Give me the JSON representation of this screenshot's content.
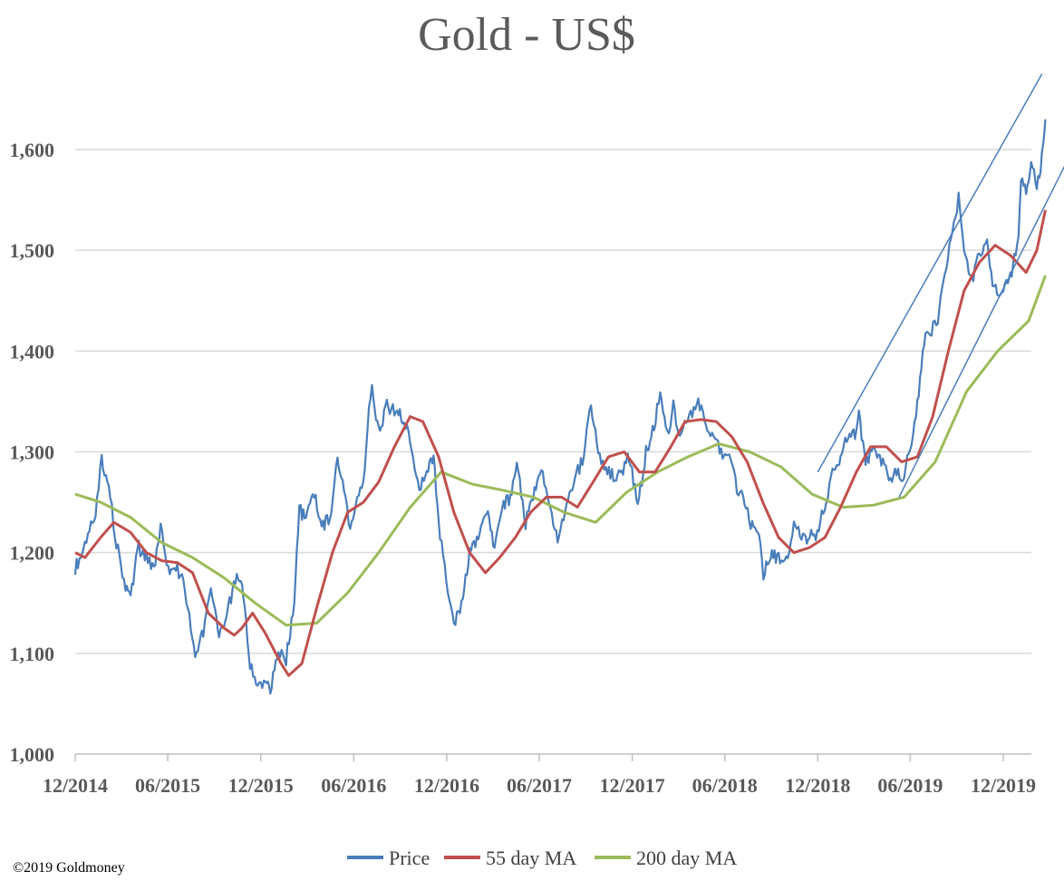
{
  "chart_data": {
    "type": "line",
    "title": "Gold - US$",
    "xlabel": "",
    "ylabel": "",
    "ylim": [
      1000,
      1650
    ],
    "yticks": [
      1000,
      1100,
      1200,
      1300,
      1400,
      1500,
      1600
    ],
    "ytick_labels": [
      "1,000",
      "1,100",
      "1,200",
      "1,300",
      "1,400",
      "1,500",
      "1,600"
    ],
    "xlim": [
      "2014-12-01",
      "2020-01-15"
    ],
    "xticks": [
      "2014-12-01",
      "2015-06-01",
      "2015-12-01",
      "2016-06-01",
      "2016-12-01",
      "2017-06-01",
      "2017-12-01",
      "2018-06-01",
      "2018-12-01",
      "2019-06-01",
      "2019-12-01"
    ],
    "xtick_labels": [
      "12/2014",
      "06/2015",
      "12/2015",
      "06/2016",
      "12/2016",
      "06/2017",
      "12/2017",
      "06/2018",
      "12/2018",
      "06/2019",
      "12/2019"
    ],
    "grid": "horizontal",
    "legend": "bottom-center",
    "series": [
      {
        "name": "Price",
        "color": "#4a7ebb",
        "points": [
          [
            "2014-12-01",
            1185
          ],
          [
            "2014-12-20",
            1205
          ],
          [
            "2015-01-10",
            1240
          ],
          [
            "2015-01-22",
            1295
          ],
          [
            "2015-02-05",
            1265
          ],
          [
            "2015-02-20",
            1210
          ],
          [
            "2015-03-10",
            1165
          ],
          [
            "2015-03-20",
            1160
          ],
          [
            "2015-04-05",
            1205
          ],
          [
            "2015-04-20",
            1195
          ],
          [
            "2015-05-05",
            1180
          ],
          [
            "2015-05-18",
            1225
          ],
          [
            "2015-06-05",
            1175
          ],
          [
            "2015-06-20",
            1185
          ],
          [
            "2015-07-05",
            1165
          ],
          [
            "2015-07-25",
            1095
          ],
          [
            "2015-08-10",
            1120
          ],
          [
            "2015-08-25",
            1160
          ],
          [
            "2015-09-10",
            1115
          ],
          [
            "2015-09-25",
            1140
          ],
          [
            "2015-10-15",
            1175
          ],
          [
            "2015-10-28",
            1160
          ],
          [
            "2015-11-10",
            1090
          ],
          [
            "2015-11-25",
            1065
          ],
          [
            "2015-12-10",
            1075
          ],
          [
            "2015-12-20",
            1065
          ],
          [
            "2016-01-05",
            1100
          ],
          [
            "2016-01-20",
            1095
          ],
          [
            "2016-02-05",
            1150
          ],
          [
            "2016-02-15",
            1245
          ],
          [
            "2016-02-28",
            1230
          ],
          [
            "2016-03-15",
            1260
          ],
          [
            "2016-03-30",
            1225
          ],
          [
            "2016-04-15",
            1235
          ],
          [
            "2016-04-30",
            1290
          ],
          [
            "2016-05-10",
            1275
          ],
          [
            "2016-05-25",
            1220
          ],
          [
            "2016-06-05",
            1245
          ],
          [
            "2016-06-20",
            1270
          ],
          [
            "2016-06-28",
            1325
          ],
          [
            "2016-07-07",
            1365
          ],
          [
            "2016-07-20",
            1320
          ],
          [
            "2016-08-05",
            1345
          ],
          [
            "2016-08-20",
            1340
          ],
          [
            "2016-09-05",
            1335
          ],
          [
            "2016-09-20",
            1315
          ],
          [
            "2016-10-05",
            1265
          ],
          [
            "2016-10-20",
            1270
          ],
          [
            "2016-11-05",
            1300
          ],
          [
            "2016-11-15",
            1230
          ],
          [
            "2016-11-30",
            1175
          ],
          [
            "2016-12-15",
            1130
          ],
          [
            "2016-12-30",
            1150
          ],
          [
            "2017-01-15",
            1200
          ],
          [
            "2017-02-01",
            1215
          ],
          [
            "2017-02-20",
            1240
          ],
          [
            "2017-03-05",
            1205
          ],
          [
            "2017-03-20",
            1245
          ],
          [
            "2017-04-05",
            1255
          ],
          [
            "2017-04-18",
            1290
          ],
          [
            "2017-05-05",
            1230
          ],
          [
            "2017-05-20",
            1255
          ],
          [
            "2017-06-05",
            1285
          ],
          [
            "2017-06-20",
            1245
          ],
          [
            "2017-07-10",
            1210
          ],
          [
            "2017-07-25",
            1255
          ],
          [
            "2017-08-10",
            1275
          ],
          [
            "2017-08-25",
            1290
          ],
          [
            "2017-09-08",
            1348
          ],
          [
            "2017-09-25",
            1300
          ],
          [
            "2017-10-10",
            1285
          ],
          [
            "2017-10-25",
            1275
          ],
          [
            "2017-11-10",
            1280
          ],
          [
            "2017-11-25",
            1295
          ],
          [
            "2017-12-12",
            1245
          ],
          [
            "2017-12-28",
            1300
          ],
          [
            "2018-01-10",
            1320
          ],
          [
            "2018-01-25",
            1355
          ],
          [
            "2018-02-08",
            1315
          ],
          [
            "2018-02-20",
            1345
          ],
          [
            "2018-03-05",
            1315
          ],
          [
            "2018-03-20",
            1330
          ],
          [
            "2018-04-10",
            1350
          ],
          [
            "2018-04-25",
            1325
          ],
          [
            "2018-05-10",
            1315
          ],
          [
            "2018-05-25",
            1300
          ],
          [
            "2018-06-10",
            1295
          ],
          [
            "2018-06-25",
            1265
          ],
          [
            "2018-07-10",
            1250
          ],
          [
            "2018-07-25",
            1225
          ],
          [
            "2018-08-10",
            1210
          ],
          [
            "2018-08-16",
            1180
          ],
          [
            "2018-08-30",
            1200
          ],
          [
            "2018-09-15",
            1195
          ],
          [
            "2018-09-30",
            1190
          ],
          [
            "2018-10-15",
            1225
          ],
          [
            "2018-10-30",
            1215
          ],
          [
            "2018-11-15",
            1215
          ],
          [
            "2018-11-30",
            1220
          ],
          [
            "2018-12-15",
            1245
          ],
          [
            "2018-12-30",
            1280
          ],
          [
            "2019-01-15",
            1290
          ],
          [
            "2019-01-30",
            1320
          ],
          [
            "2019-02-15",
            1315
          ],
          [
            "2019-02-20",
            1340
          ],
          [
            "2019-03-05",
            1285
          ],
          [
            "2019-03-20",
            1310
          ],
          [
            "2019-04-05",
            1290
          ],
          [
            "2019-04-20",
            1275
          ],
          [
            "2019-05-05",
            1280
          ],
          [
            "2019-05-20",
            1275
          ],
          [
            "2019-06-01",
            1305
          ],
          [
            "2019-06-15",
            1345
          ],
          [
            "2019-06-28",
            1410
          ],
          [
            "2019-07-10",
            1420
          ],
          [
            "2019-07-25",
            1430
          ],
          [
            "2019-08-05",
            1470
          ],
          [
            "2019-08-20",
            1510
          ],
          [
            "2019-09-04",
            1552
          ],
          [
            "2019-09-15",
            1495
          ],
          [
            "2019-09-30",
            1470
          ],
          [
            "2019-10-15",
            1495
          ],
          [
            "2019-10-30",
            1510
          ],
          [
            "2019-11-10",
            1460
          ],
          [
            "2019-11-25",
            1460
          ],
          [
            "2019-12-10",
            1470
          ],
          [
            "2019-12-20",
            1480
          ],
          [
            "2019-12-31",
            1520
          ],
          [
            "2020-01-05",
            1570
          ],
          [
            "2020-01-15",
            1560
          ],
          [
            "2020-01-25",
            1585
          ],
          [
            "2020-02-05",
            1565
          ],
          [
            "2020-02-15",
            1590
          ],
          [
            "2020-02-22",
            1630
          ]
        ]
      },
      {
        "name": "55 day MA",
        "color": "#c0504d",
        "points": [
          [
            "2014-12-01",
            1200
          ],
          [
            "2014-12-20",
            1195
          ],
          [
            "2015-01-20",
            1215
          ],
          [
            "2015-02-15",
            1230
          ],
          [
            "2015-03-20",
            1220
          ],
          [
            "2015-04-20",
            1200
          ],
          [
            "2015-05-20",
            1192
          ],
          [
            "2015-06-20",
            1190
          ],
          [
            "2015-07-20",
            1180
          ],
          [
            "2015-08-20",
            1140
          ],
          [
            "2015-09-20",
            1125
          ],
          [
            "2015-10-10",
            1118
          ],
          [
            "2015-10-25",
            1125
          ],
          [
            "2015-11-15",
            1140
          ],
          [
            "2015-12-10",
            1120
          ],
          [
            "2016-01-10",
            1090
          ],
          [
            "2016-01-25",
            1078
          ],
          [
            "2016-02-20",
            1090
          ],
          [
            "2016-03-20",
            1145
          ],
          [
            "2016-04-20",
            1200
          ],
          [
            "2016-05-20",
            1240
          ],
          [
            "2016-06-20",
            1250
          ],
          [
            "2016-07-20",
            1270
          ],
          [
            "2016-08-20",
            1305
          ],
          [
            "2016-09-20",
            1335
          ],
          [
            "2016-10-15",
            1330
          ],
          [
            "2016-11-15",
            1295
          ],
          [
            "2016-12-15",
            1240
          ],
          [
            "2017-01-15",
            1200
          ],
          [
            "2017-02-15",
            1180
          ],
          [
            "2017-03-15",
            1195
          ],
          [
            "2017-04-15",
            1215
          ],
          [
            "2017-05-15",
            1240
          ],
          [
            "2017-06-15",
            1255
          ],
          [
            "2017-07-15",
            1255
          ],
          [
            "2017-08-15",
            1245
          ],
          [
            "2017-09-15",
            1270
          ],
          [
            "2017-10-15",
            1295
          ],
          [
            "2017-11-15",
            1300
          ],
          [
            "2017-12-15",
            1280
          ],
          [
            "2018-01-15",
            1280
          ],
          [
            "2018-02-15",
            1305
          ],
          [
            "2018-03-15",
            1330
          ],
          [
            "2018-04-15",
            1332
          ],
          [
            "2018-05-15",
            1330
          ],
          [
            "2018-06-15",
            1315
          ],
          [
            "2018-07-15",
            1290
          ],
          [
            "2018-08-15",
            1250
          ],
          [
            "2018-09-15",
            1215
          ],
          [
            "2018-10-15",
            1200
          ],
          [
            "2018-11-15",
            1205
          ],
          [
            "2018-12-15",
            1215
          ],
          [
            "2019-01-15",
            1245
          ],
          [
            "2019-02-15",
            1280
          ],
          [
            "2019-03-15",
            1305
          ],
          [
            "2019-04-15",
            1305
          ],
          [
            "2019-05-15",
            1290
          ],
          [
            "2019-06-15",
            1295
          ],
          [
            "2019-07-15",
            1335
          ],
          [
            "2019-08-15",
            1400
          ],
          [
            "2019-09-15",
            1460
          ],
          [
            "2019-10-15",
            1488
          ],
          [
            "2019-11-15",
            1505
          ],
          [
            "2019-12-15",
            1495
          ],
          [
            "2020-01-15",
            1478
          ],
          [
            "2020-02-05",
            1500
          ],
          [
            "2020-02-22",
            1540
          ]
        ]
      },
      {
        "name": "200 day MA",
        "color": "#9bbb59",
        "points": [
          [
            "2014-12-01",
            1258
          ],
          [
            "2015-01-20",
            1250
          ],
          [
            "2015-03-20",
            1235
          ],
          [
            "2015-05-20",
            1210
          ],
          [
            "2015-07-20",
            1195
          ],
          [
            "2015-09-20",
            1175
          ],
          [
            "2015-11-20",
            1150
          ],
          [
            "2016-01-20",
            1128
          ],
          [
            "2016-03-20",
            1130
          ],
          [
            "2016-05-20",
            1160
          ],
          [
            "2016-07-20",
            1200
          ],
          [
            "2016-09-20",
            1245
          ],
          [
            "2016-11-20",
            1280
          ],
          [
            "2017-01-20",
            1268
          ],
          [
            "2017-03-20",
            1262
          ],
          [
            "2017-05-20",
            1255
          ],
          [
            "2017-07-20",
            1240
          ],
          [
            "2017-09-20",
            1230
          ],
          [
            "2017-11-20",
            1260
          ],
          [
            "2018-01-20",
            1280
          ],
          [
            "2018-03-20",
            1295
          ],
          [
            "2018-05-20",
            1308
          ],
          [
            "2018-07-20",
            1300
          ],
          [
            "2018-09-20",
            1285
          ],
          [
            "2018-11-20",
            1258
          ],
          [
            "2019-01-20",
            1245
          ],
          [
            "2019-03-20",
            1247
          ],
          [
            "2019-05-20",
            1255
          ],
          [
            "2019-07-20",
            1290
          ],
          [
            "2019-09-20",
            1360
          ],
          [
            "2019-11-20",
            1400
          ],
          [
            "2020-01-20",
            1430
          ],
          [
            "2020-02-22",
            1475
          ]
        ]
      }
    ],
    "trendlines": [
      {
        "color": "#4a7ebb",
        "from": [
          "2018-12-01",
          1280
        ],
        "to": [
          "2020-02-15",
          1675
        ]
      },
      {
        "color": "#4a7ebb",
        "from": [
          "2019-05-10",
          1255
        ],
        "to": [
          "2020-04-01",
          1585
        ]
      }
    ]
  },
  "footer": {
    "copyright": "©2019 Goldmoney"
  }
}
